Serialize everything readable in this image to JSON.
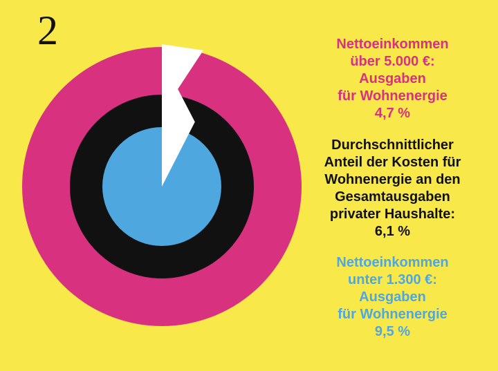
{
  "page_number": "2",
  "colors": {
    "background": "#F8E84A",
    "high_income": "#D7317F",
    "average": "#111111",
    "low_income": "#4FA7DF",
    "gap": "#FFFFFF"
  },
  "chart_data": {
    "type": "pie",
    "variant": "concentric-rings",
    "title": "Durchschnittlicher Anteil der Kosten für Wohnenergie an den Gesamtausgaben privater Haushalte",
    "unit": "%",
    "series": [
      {
        "name": "Nettoeinkommen über 5.000 €",
        "ring": "outer",
        "value": 4.7
      },
      {
        "name": "Durchschnitt",
        "ring": "middle",
        "value": 6.1
      },
      {
        "name": "Nettoeinkommen unter 1.300 €",
        "ring": "inner",
        "value": 9.5
      }
    ]
  },
  "annotations": {
    "high": {
      "lines": [
        "Nettoeinkommen",
        "über 5.000 €:",
        "Ausgaben",
        "für Wohnenergie"
      ],
      "value": "4,7 %"
    },
    "average": {
      "lines": [
        "Durchschnittlicher",
        "Anteil der Kosten für",
        "Wohnenergie an den",
        "Gesamtausgaben",
        "privater Haushalte:"
      ],
      "value": "6,1 %"
    },
    "low": {
      "lines": [
        "Nettoeinkommen",
        "unter 1.300 €:",
        "Ausgaben",
        "für Wohnenergie"
      ],
      "value": "9,5 %"
    }
  }
}
